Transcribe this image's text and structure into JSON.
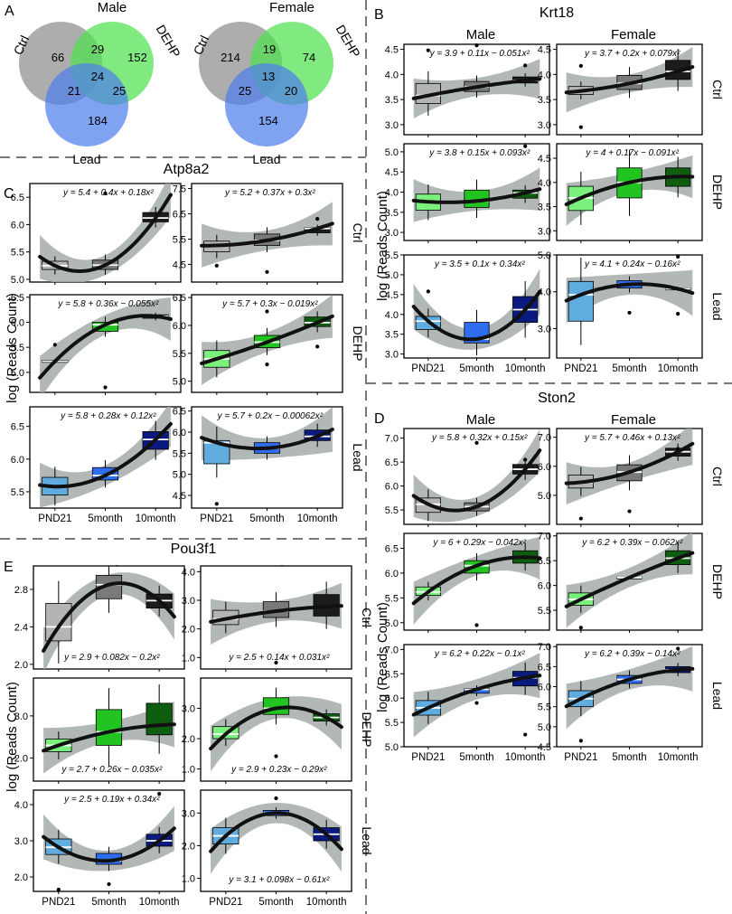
{
  "figure": {
    "panels": [
      {
        "letter": "A",
        "type": "venn"
      },
      {
        "letter": "B",
        "gene": "Krt18"
      },
      {
        "letter": "C",
        "gene": "Atp8a2"
      },
      {
        "letter": "D",
        "gene": "Ston2"
      },
      {
        "letter": "E",
        "gene": "Pou3f1"
      }
    ],
    "sexes": [
      "Male",
      "Female"
    ],
    "treatments": [
      "Ctrl",
      "DEHP",
      "Lead"
    ],
    "x_categories": [
      "PND21",
      "5month",
      "10month"
    ],
    "y_axis_label": "log (Reads Count)",
    "colors": {
      "Ctrl": [
        "#b4b4b4",
        "#7a7a7a",
        "#1c1c1c"
      ],
      "DEHP": [
        "#7cf07c",
        "#22c422",
        "#0f5e0f"
      ],
      "Lead": [
        "#61acdf",
        "#2f6df0",
        "#0b1a7e"
      ],
      "band": "#a4aba9",
      "venn_ctrl": "#8e8e8e",
      "venn_dehp": "#4fe24f",
      "venn_lead": "#4f7fec"
    }
  },
  "chart_data": [
    {
      "type": "venn",
      "title": "Male",
      "sets": [
        "Ctrl",
        "DEHP",
        "Lead"
      ],
      "regions": {
        "ctrl_only": 66,
        "dehp_only": 152,
        "lead_only": 184,
        "ctrl_dehp": 29,
        "ctrl_lead": 21,
        "dehp_lead": 25,
        "all": 24
      }
    },
    {
      "type": "venn",
      "title": "Female",
      "sets": [
        "Ctrl",
        "DEHP",
        "Lead"
      ],
      "regions": {
        "ctrl_only": 214,
        "dehp_only": 74,
        "lead_only": 154,
        "ctrl_dehp": 19,
        "ctrl_lead": 25,
        "dehp_lead": 20,
        "all": 13
      }
    },
    {
      "type": "box",
      "gene": "Krt18",
      "sex": "Male",
      "treatment": "Ctrl",
      "ylim": [
        2.8,
        4.6
      ],
      "yticks": [
        "3.0",
        "3.5",
        "4.0",
        "4.5"
      ],
      "equation": "y = 3.9 + 0.11x − 0.051x²",
      "boxes": [
        [
          3.42,
          3.58,
          3.82
        ],
        [
          3.66,
          3.75,
          3.86
        ],
        [
          3.83,
          3.88,
          3.95
        ]
      ],
      "outliers": [
        [
          4.48
        ],
        [
          4.58
        ],
        [
          4.18
        ]
      ]
    },
    {
      "type": "box",
      "gene": "Krt18",
      "sex": "Female",
      "treatment": "Ctrl",
      "ylim": [
        2.8,
        4.6
      ],
      "yticks": [
        "3.0",
        "3.5",
        "4.0",
        "4.5"
      ],
      "equation": "y = 3.7 + 0.2x + 0.079x²",
      "boxes": [
        [
          3.6,
          3.67,
          3.76
        ],
        [
          3.7,
          3.82,
          3.98
        ],
        [
          3.9,
          4.06,
          4.28
        ]
      ],
      "outliers": [
        [
          4.17,
          2.95
        ],
        [],
        []
      ]
    },
    {
      "type": "box",
      "gene": "Krt18",
      "sex": "Male",
      "treatment": "DEHP",
      "ylim": [
        2.8,
        5.2
      ],
      "yticks": [
        "3.0",
        "3.5",
        "4.0",
        "4.5",
        "5.0"
      ],
      "equation": "y = 3.8 + 0.15x + 0.093x²",
      "boxes": [
        [
          3.55,
          3.76,
          3.95
        ],
        [
          3.62,
          3.78,
          4.05
        ],
        [
          3.85,
          3.98,
          4.05
        ]
      ],
      "outliers": [
        [],
        [],
        [
          5.14
        ]
      ]
    },
    {
      "type": "box",
      "gene": "Krt18",
      "sex": "Female",
      "treatment": "DEHP",
      "ylim": [
        2.8,
        4.8
      ],
      "yticks": [
        "3.0",
        "3.5",
        "4.0",
        "4.5"
      ],
      "equation": "y = 4 + 0.17x − 0.091x²",
      "boxes": [
        [
          3.42,
          3.68,
          3.92
        ],
        [
          3.68,
          4.0,
          4.3
        ],
        [
          3.92,
          4.12,
          4.3
        ]
      ],
      "outliers": [
        [],
        [],
        []
      ]
    },
    {
      "type": "box",
      "gene": "Krt18",
      "sex": "Male",
      "treatment": "Lead",
      "ylim": [
        2.9,
        5.5
      ],
      "yticks": [
        "3.0",
        "3.5",
        "4.0",
        "4.5",
        "5.0",
        "5.5"
      ],
      "equation": "y = 3.5 + 0.1x + 0.34x²",
      "boxes": [
        [
          3.62,
          3.83,
          3.95
        ],
        [
          3.28,
          3.38,
          3.8
        ],
        [
          3.8,
          4.12,
          4.45
        ]
      ],
      "outliers": [
        [
          4.58
        ],
        [],
        []
      ]
    },
    {
      "type": "box",
      "gene": "Krt18",
      "sex": "Female",
      "treatment": "Lead",
      "ylim": [
        2.2,
        5.0
      ],
      "yticks": [
        "3.0",
        "4.0",
        "5.0"
      ],
      "equation": "y = 4.1 + 0.24x − 0.16x²",
      "boxes": [
        [
          3.2,
          3.92,
          4.28
        ],
        [
          4.1,
          4.2,
          4.3
        ],
        [
          4.05,
          4.08,
          4.1
        ]
      ],
      "outliers": [
        [],
        [
          3.43
        ],
        [
          4.95,
          3.4
        ]
      ]
    },
    {
      "type": "box",
      "gene": "Atp8a2",
      "sex": "Male",
      "treatment": "Ctrl",
      "ylim": [
        4.95,
        6.75
      ],
      "yticks": [
        "5.0",
        "5.5",
        "6.0",
        "6.5"
      ],
      "equation": "y = 5.4 + 0.4x + 0.18x²",
      "boxes": [
        [
          5.18,
          5.25,
          5.33
        ],
        [
          5.18,
          5.26,
          5.35
        ],
        [
          6.05,
          6.12,
          6.22
        ]
      ],
      "outliers": [
        [],
        [
          6.57
        ],
        []
      ]
    },
    {
      "type": "box",
      "gene": "Atp8a2",
      "sex": "Female",
      "treatment": "Ctrl",
      "ylim": [
        3.8,
        7.7
      ],
      "yticks": [
        "4.5",
        "5.5",
        "6.5",
        "7.5"
      ],
      "equation": "y = 5.2 + 0.37x + 0.3x²",
      "boxes": [
        [
          5.0,
          5.25,
          5.42
        ],
        [
          5.25,
          5.45,
          5.7
        ],
        [
          5.75,
          5.92,
          5.95
        ]
      ],
      "outliers": [
        [
          4.45
        ],
        [
          4.2
        ],
        [
          6.3,
          5.9
        ]
      ]
    },
    {
      "type": "box",
      "gene": "Atp8a2",
      "sex": "Male",
      "treatment": "DEHP",
      "ylim": [
        4.6,
        6.55
      ],
      "yticks": [
        "5.0",
        "5.5",
        "6.0",
        "6.5"
      ],
      "equation": "y = 5.8 + 0.36x − 0.055x²",
      "boxes": [
        [
          5.2,
          5.22,
          5.24
        ],
        [
          5.82,
          5.95,
          6.0
        ],
        [
          6.08,
          6.12,
          6.15
        ]
      ],
      "outliers": [
        [
          5.55
        ],
        [
          4.7
        ],
        []
      ]
    },
    {
      "type": "box",
      "gene": "Atp8a2",
      "sex": "Female",
      "treatment": "DEHP",
      "ylim": [
        4.8,
        6.55
      ],
      "yticks": [
        "5.0",
        "5.5",
        "6.0",
        "6.5"
      ],
      "equation": "y = 5.7 + 0.3x − 0.019x²",
      "boxes": [
        [
          5.25,
          5.4,
          5.55
        ],
        [
          5.6,
          5.7,
          5.82
        ],
        [
          5.98,
          6.05,
          6.15
        ]
      ],
      "outliers": [
        [],
        [
          5.3,
          6.25
        ],
        [
          5.62
        ]
      ]
    },
    {
      "type": "box",
      "gene": "Atp8a2",
      "sex": "Male",
      "treatment": "Lead",
      "ylim": [
        5.25,
        6.8
      ],
      "yticks": [
        "5.5",
        "6.0",
        "6.5"
      ],
      "equation": "y = 5.8 + 0.28x + 0.12x²",
      "boxes": [
        [
          5.45,
          5.58,
          5.72
        ],
        [
          5.68,
          5.75,
          5.87
        ],
        [
          6.15,
          6.3,
          6.42
        ]
      ],
      "outliers": [
        [],
        [],
        []
      ]
    },
    {
      "type": "box",
      "gene": "Atp8a2",
      "sex": "Female",
      "treatment": "Lead",
      "ylim": [
        4.2,
        6.6
      ],
      "yticks": [
        "4.5",
        "5.0",
        "5.5",
        "6.0",
        "6.5"
      ],
      "equation": "y = 5.7 + 0.2x − 0.00062x²",
      "boxes": [
        [
          5.25,
          5.75,
          5.8
        ],
        [
          5.5,
          5.62,
          5.75
        ],
        [
          5.8,
          5.9,
          6.05
        ]
      ],
      "outliers": [
        [
          4.3
        ],
        [],
        []
      ]
    },
    {
      "type": "box",
      "gene": "Ston2",
      "sex": "Male",
      "treatment": "Ctrl",
      "ylim": [
        5.2,
        7.2
      ],
      "yticks": [
        "5.5",
        "6.0",
        "6.5",
        "7.0"
      ],
      "equation": "y = 5.8 + 0.32x + 0.15x²",
      "boxes": [
        [
          5.45,
          5.62,
          5.75
        ],
        [
          5.48,
          5.57,
          5.65
        ],
        [
          6.25,
          6.35,
          6.45
        ]
      ],
      "outliers": [
        [],
        [
          6.9
        ],
        [
          6.55
        ]
      ]
    },
    {
      "type": "box",
      "gene": "Ston2",
      "sex": "Female",
      "treatment": "Ctrl",
      "ylim": [
        4.0,
        7.3
      ],
      "yticks": [
        "5.0",
        "6.0",
        "7.0"
      ],
      "equation": "y = 5.7 + 0.46x + 0.13x²",
      "boxes": [
        [
          5.25,
          5.45,
          5.7
        ],
        [
          5.5,
          5.8,
          6.05
        ],
        [
          6.35,
          6.5,
          6.62
        ]
      ],
      "outliers": [
        [
          4.2
        ],
        [
          4.45
        ],
        [
          6.6
        ]
      ]
    },
    {
      "type": "box",
      "gene": "Ston2",
      "sex": "Male",
      "treatment": "DEHP",
      "ylim": [
        4.85,
        6.8
      ],
      "yticks": [
        "5.0",
        "5.5",
        "6.0",
        "6.5"
      ],
      "equation": "y = 6 + 0.29x − 0.042x²",
      "boxes": [
        [
          5.55,
          5.62,
          5.72
        ],
        [
          6.0,
          6.15,
          6.25
        ],
        [
          6.2,
          6.32,
          6.45
        ]
      ],
      "outliers": [
        [],
        [
          4.95
        ],
        []
      ]
    },
    {
      "type": "box",
      "gene": "Ston2",
      "sex": "Female",
      "treatment": "DEHP",
      "ylim": [
        5.1,
        7.05
      ],
      "yticks": [
        "5.5",
        "6.0",
        "6.5",
        "7.0"
      ],
      "equation": "y = 6.2 + 0.39x − 0.062x²",
      "boxes": [
        [
          5.6,
          5.72,
          5.85
        ],
        [
          6.15,
          6.16,
          6.17
        ],
        [
          6.42,
          6.55,
          6.7
        ]
      ],
      "outliers": [
        [
          5.15
        ],
        [],
        []
      ]
    },
    {
      "type": "box",
      "gene": "Ston2",
      "sex": "Male",
      "treatment": "Lead",
      "ylim": [
        5.0,
        7.1
      ],
      "yticks": [
        "5.0",
        "5.5",
        "6.0",
        "6.5",
        "7.0"
      ],
      "equation": "y = 6.2 + 0.22x − 0.1x²",
      "boxes": [
        [
          5.65,
          5.8,
          5.95
        ],
        [
          6.1,
          6.18,
          6.2
        ],
        [
          6.25,
          6.42,
          6.55
        ]
      ],
      "outliers": [
        [],
        [
          5.9
        ],
        [
          5.25
        ]
      ]
    },
    {
      "type": "box",
      "gene": "Ston2",
      "sex": "Female",
      "treatment": "Lead",
      "ylim": [
        4.5,
        7.05
      ],
      "yticks": [
        "4.5",
        "5.0",
        "5.5",
        "6.0",
        "6.5",
        "7.0"
      ],
      "equation": "y = 6.2 + 0.39x − 0.14x²",
      "boxes": [
        [
          5.5,
          5.7,
          5.9
        ],
        [
          6.08,
          6.18,
          6.28
        ],
        [
          6.35,
          6.42,
          6.5
        ]
      ],
      "outliers": [
        [
          4.65
        ],
        [],
        [
          6.95
        ]
      ]
    },
    {
      "type": "box",
      "gene": "Pou3f1",
      "sex": "Male",
      "treatment": "Ctrl",
      "ylim": [
        1.95,
        3.05
      ],
      "yticks": [
        "2.0",
        "2.4",
        "2.8"
      ],
      "equation": "y = 2.9 + 0.082x − 0.2x²",
      "boxes": [
        [
          2.25,
          2.4,
          2.65
        ],
        [
          2.7,
          2.85,
          2.95
        ],
        [
          2.6,
          2.68,
          2.75
        ]
      ],
      "outliers": [
        [],
        [],
        []
      ]
    },
    {
      "type": "box",
      "gene": "Pou3f1",
      "sex": "Female",
      "treatment": "Ctrl",
      "ylim": [
        0.6,
        4.2
      ],
      "yticks": [
        "1.0",
        "2.0",
        "3.0",
        "4.0"
      ],
      "equation": "y = 2.5 + 0.14x + 0.031x²",
      "boxes": [
        [
          2.15,
          2.35,
          2.65
        ],
        [
          2.4,
          2.62,
          2.95
        ],
        [
          2.45,
          2.78,
          3.2
        ]
      ],
      "outliers": [
        [],
        [
          0.82
        ],
        []
      ]
    },
    {
      "type": "box",
      "gene": "Pou3f1",
      "sex": "Male",
      "treatment": "DEHP",
      "ylim": [
        1.45,
        3.9
      ],
      "yticks": [
        "2.0",
        "3.0"
      ],
      "equation": "y = 2.7 + 0.26x − 0.035x²",
      "boxes": [
        [
          2.15,
          2.3,
          2.45
        ],
        [
          2.3,
          2.62,
          3.15
        ],
        [
          2.55,
          2.78,
          3.3
        ]
      ],
      "outliers": [
        [],
        [],
        []
      ]
    },
    {
      "type": "box",
      "gene": "Pou3f1",
      "sex": "Female",
      "treatment": "DEHP",
      "ylim": [
        0.6,
        4.0
      ],
      "yticks": [
        "1.0",
        "2.0",
        "3.0"
      ],
      "equation": "y = 2.9 + 0.23x − 0.29x²",
      "boxes": [
        [
          2.0,
          2.15,
          2.4
        ],
        [
          2.8,
          3.0,
          3.35
        ],
        [
          2.58,
          2.7,
          2.82
        ]
      ],
      "outliers": [
        [],
        [
          1.42
        ],
        []
      ]
    },
    {
      "type": "box",
      "gene": "Pou3f1",
      "sex": "Male",
      "treatment": "Lead",
      "ylim": [
        1.6,
        4.4
      ],
      "yticks": [
        "2.0",
        "3.0",
        "4.0"
      ],
      "equation": "y = 2.5 + 0.19x + 0.34x²",
      "boxes": [
        [
          2.62,
          2.82,
          3.05
        ],
        [
          2.35,
          2.45,
          2.65
        ],
        [
          2.85,
          3.0,
          3.18
        ]
      ],
      "outliers": [
        [
          1.65
        ],
        [
          1.8
        ],
        [
          4.3
        ]
      ]
    },
    {
      "type": "box",
      "gene": "Pou3f1",
      "sex": "Female",
      "treatment": "Lead",
      "ylim": [
        0.6,
        3.7
      ],
      "yticks": [
        "1.0",
        "2.0",
        "3.0"
      ],
      "equation": "y = 3.1 + 0.098x − 0.61x²",
      "boxes": [
        [
          2.05,
          2.3,
          2.55
        ],
        [
          2.92,
          3.0,
          3.08
        ],
        [
          2.15,
          2.35,
          2.55
        ]
      ],
      "outliers": [
        [],
        [
          3.45
        ],
        []
      ]
    }
  ]
}
